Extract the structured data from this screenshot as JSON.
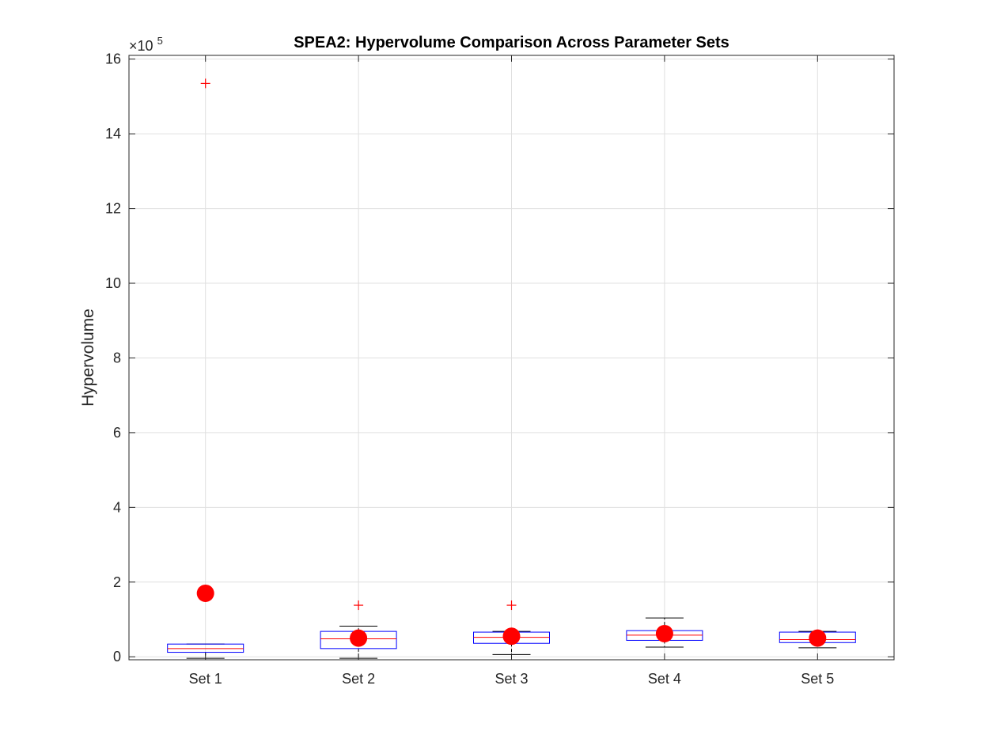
{
  "chart_data": {
    "type": "box",
    "title": "SPEA2: Hypervolume Comparison Across Parameter Sets",
    "xlabel": "",
    "ylabel": "Hypervolume",
    "exponent_label": "×10",
    "exponent_power": "5",
    "scale": 100000,
    "ylim": [
      -0.08,
      16.1
    ],
    "yticks": [
      0,
      2,
      4,
      6,
      8,
      10,
      12,
      14,
      16
    ],
    "categories": [
      "Set 1",
      "Set 2",
      "Set 3",
      "Set 4",
      "Set 5"
    ],
    "grid": true,
    "boxes": [
      {
        "q1": 0.12,
        "median": 0.22,
        "q3": 0.34,
        "whisker_low": -0.04,
        "whisker_high": 0.34,
        "outliers": [
          15.35
        ],
        "mean": 1.7
      },
      {
        "q1": 0.22,
        "median": 0.48,
        "q3": 0.68,
        "whisker_low": -0.04,
        "whisker_high": 0.82,
        "outliers": [
          1.38
        ],
        "mean": 0.5
      },
      {
        "q1": 0.36,
        "median": 0.52,
        "q3": 0.66,
        "whisker_low": 0.06,
        "whisker_high": 0.68,
        "outliers": [
          1.38
        ],
        "mean": 0.55
      },
      {
        "q1": 0.44,
        "median": 0.58,
        "q3": 0.7,
        "whisker_low": 0.26,
        "whisker_high": 1.04,
        "outliers": [],
        "mean": 0.62
      },
      {
        "q1": 0.38,
        "median": 0.46,
        "q3": 0.66,
        "whisker_low": 0.24,
        "whisker_high": 0.68,
        "outliers": [],
        "mean": 0.5
      }
    ],
    "colors": {
      "box": "#0000ff",
      "median": "#ff0000",
      "whisker": "#000000",
      "outlier": "#ff0000",
      "mean": "#ff0000",
      "grid": "#e0e0e0",
      "axis": "#262626"
    }
  }
}
